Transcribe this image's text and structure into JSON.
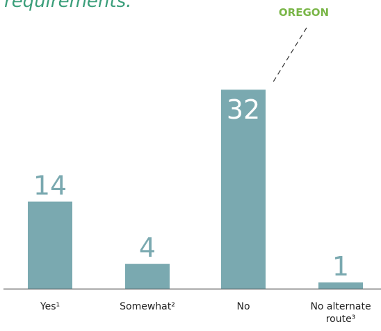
{
  "chart_data": {
    "type": "bar",
    "title": "requirements.",
    "categories": [
      "Yes¹",
      "Somewhat²",
      "No",
      "No alternate route³"
    ],
    "values": [
      14,
      4,
      32,
      1
    ],
    "color": "#7aa9b0",
    "ylim": [
      0,
      38.5
    ],
    "annotation": "OREGON"
  }
}
